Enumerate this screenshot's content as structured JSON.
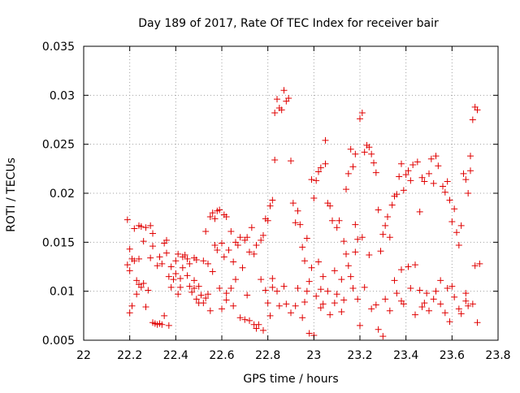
{
  "chart_data": {
    "type": "scatter",
    "title": "Day 189 of 2017, Rate Of TEC Index for receiver bair",
    "xlabel": "GPS time / hours",
    "ylabel": "ROTI / TECUs",
    "xlim": [
      22,
      23.8
    ],
    "ylim": [
      0.005,
      0.035
    ],
    "xticks": [
      "22",
      "22.2",
      "22.4",
      "22.6",
      "22.8",
      "23",
      "23.2",
      "23.4",
      "23.6",
      "23.8"
    ],
    "yticks": [
      "0.005",
      "0.01",
      "0.015",
      "0.02",
      "0.025",
      "0.03",
      "0.035"
    ],
    "grid": true,
    "marker": "+",
    "color": "#e00000",
    "series": [
      {
        "name": "",
        "points": [
          [
            22.19,
            0.0173
          ],
          [
            22.19,
            0.0127
          ],
          [
            22.2,
            0.0143
          ],
          [
            22.2,
            0.0121
          ],
          [
            22.21,
            0.0133
          ],
          [
            22.21,
            0.0085
          ],
          [
            22.2,
            0.0078
          ],
          [
            22.22,
            0.0164
          ],
          [
            22.22,
            0.0131
          ],
          [
            22.23,
            0.0111
          ],
          [
            22.23,
            0.0097
          ],
          [
            22.24,
            0.0167
          ],
          [
            22.24,
            0.0107
          ],
          [
            22.25,
            0.0104
          ],
          [
            22.25,
            0.0166
          ],
          [
            22.26,
            0.0151
          ],
          [
            22.26,
            0.0108
          ],
          [
            22.27,
            0.0165
          ],
          [
            22.27,
            0.0084
          ],
          [
            22.28,
            0.0101
          ],
          [
            22.29,
            0.0167
          ],
          [
            22.29,
            0.0134
          ],
          [
            22.3,
            0.0068
          ],
          [
            22.3,
            0.0159
          ],
          [
            22.31,
            0.0067
          ],
          [
            22.32,
            0.0126
          ],
          [
            22.32,
            0.0066
          ],
          [
            22.33,
            0.0135
          ],
          [
            22.33,
            0.0067
          ],
          [
            22.34,
            0.0128
          ],
          [
            22.34,
            0.0066
          ],
          [
            22.35,
            0.0149
          ],
          [
            22.35,
            0.0075
          ],
          [
            22.36,
            0.0152
          ],
          [
            22.36,
            0.0139
          ],
          [
            22.37,
            0.0115
          ],
          [
            22.37,
            0.0065
          ],
          [
            22.38,
            0.0104
          ],
          [
            22.38,
            0.0125
          ],
          [
            22.39,
            0.0112
          ],
          [
            22.4,
            0.0118
          ],
          [
            22.4,
            0.0131
          ],
          [
            22.41,
            0.0097
          ],
          [
            22.41,
            0.0138
          ],
          [
            22.42,
            0.0113
          ],
          [
            22.42,
            0.0104
          ],
          [
            22.43,
            0.0124
          ],
          [
            22.43,
            0.0135
          ],
          [
            22.44,
            0.0137
          ],
          [
            22.45,
            0.0133
          ],
          [
            22.45,
            0.0116
          ],
          [
            22.46,
            0.0128
          ],
          [
            22.46,
            0.0105
          ],
          [
            22.47,
            0.0099
          ],
          [
            22.48,
            0.0134
          ],
          [
            22.48,
            0.0111
          ],
          [
            22.49,
            0.0132
          ],
          [
            22.49,
            0.0092
          ],
          [
            22.5,
            0.0088
          ],
          [
            22.5,
            0.0105
          ],
          [
            22.51,
            0.0096
          ],
          [
            22.52,
            0.0131
          ],
          [
            22.52,
            0.0088
          ],
          [
            22.53,
            0.0093
          ],
          [
            22.53,
            0.0161
          ],
          [
            22.54,
            0.0128
          ],
          [
            22.54,
            0.0097
          ],
          [
            22.55,
            0.0176
          ],
          [
            22.55,
            0.008
          ],
          [
            22.56,
            0.018
          ],
          [
            22.56,
            0.012
          ],
          [
            22.57,
            0.0174
          ],
          [
            22.58,
            0.0142
          ],
          [
            22.58,
            0.0182
          ],
          [
            22.59,
            0.0103
          ],
          [
            22.59,
            0.0183
          ],
          [
            22.6,
            0.0149
          ],
          [
            22.6,
            0.0082
          ],
          [
            22.61,
            0.0178
          ],
          [
            22.61,
            0.0135
          ],
          [
            22.62,
            0.0176
          ],
          [
            22.62,
            0.0091
          ],
          [
            22.63,
            0.0142
          ],
          [
            22.64,
            0.0161
          ],
          [
            22.64,
            0.0103
          ],
          [
            22.65,
            0.013
          ],
          [
            22.65,
            0.0085
          ],
          [
            22.66,
            0.015
          ],
          [
            22.66,
            0.0112
          ],
          [
            22.67,
            0.0147
          ],
          [
            22.68,
            0.0073
          ],
          [
            22.68,
            0.0155
          ],
          [
            22.69,
            0.0124
          ],
          [
            22.7,
            0.0071
          ],
          [
            22.7,
            0.0152
          ],
          [
            22.71,
            0.0155
          ],
          [
            22.71,
            0.0096
          ],
          [
            22.72,
            0.007
          ],
          [
            22.72,
            0.014
          ],
          [
            22.73,
            0.0165
          ],
          [
            22.74,
            0.0066
          ],
          [
            22.74,
            0.0138
          ],
          [
            22.75,
            0.0062
          ],
          [
            22.75,
            0.0147
          ],
          [
            22.76,
            0.0066
          ],
          [
            22.77,
            0.0152
          ],
          [
            22.77,
            0.0112
          ],
          [
            22.78,
            0.0157
          ],
          [
            22.78,
            0.006
          ],
          [
            22.79,
            0.0174
          ],
          [
            22.79,
            0.0101
          ],
          [
            22.8,
            0.0172
          ],
          [
            22.8,
            0.0088
          ],
          [
            22.81,
            0.0187
          ],
          [
            22.81,
            0.0075
          ],
          [
            22.82,
            0.0193
          ],
          [
            22.82,
            0.0104
          ],
          [
            22.83,
            0.0234
          ],
          [
            22.83,
            0.0282
          ],
          [
            22.84,
            0.0296
          ],
          [
            22.84,
            0.01
          ],
          [
            22.85,
            0.0287
          ],
          [
            22.85,
            0.0085
          ],
          [
            22.86,
            0.0285
          ],
          [
            22.87,
            0.0305
          ],
          [
            22.87,
            0.0105
          ],
          [
            22.88,
            0.0294
          ],
          [
            22.88,
            0.0087
          ],
          [
            22.89,
            0.0297
          ],
          [
            22.9,
            0.0233
          ],
          [
            22.9,
            0.0078
          ],
          [
            22.91,
            0.019
          ],
          [
            22.92,
            0.017
          ],
          [
            22.92,
            0.0085
          ],
          [
            22.93,
            0.0182
          ],
          [
            22.93,
            0.0103
          ],
          [
            22.94,
            0.0168
          ],
          [
            22.95,
            0.0145
          ],
          [
            22.95,
            0.0073
          ],
          [
            22.96,
            0.0131
          ],
          [
            22.96,
            0.0089
          ],
          [
            22.97,
            0.0154
          ],
          [
            22.98,
            0.011
          ],
          [
            22.98,
            0.0057
          ],
          [
            22.99,
            0.0214
          ],
          [
            22.99,
            0.0124
          ],
          [
            23.0,
            0.0195
          ],
          [
            23.0,
            0.0055
          ],
          [
            23.01,
            0.0213
          ],
          [
            23.01,
            0.0095
          ],
          [
            23.02,
            0.0222
          ],
          [
            23.02,
            0.013
          ],
          [
            23.03,
            0.0226
          ],
          [
            23.04,
            0.0115
          ],
          [
            23.04,
            0.0087
          ],
          [
            23.05,
            0.0254
          ],
          [
            23.05,
            0.023
          ],
          [
            23.06,
            0.019
          ],
          [
            23.06,
            0.01
          ],
          [
            23.07,
            0.0187
          ],
          [
            23.07,
            0.0076
          ],
          [
            23.08,
            0.0172
          ],
          [
            23.09,
            0.0121
          ],
          [
            23.09,
            0.0088
          ],
          [
            23.1,
            0.0165
          ],
          [
            23.1,
            0.0097
          ],
          [
            23.11,
            0.0172
          ],
          [
            23.12,
            0.0112
          ],
          [
            23.12,
            0.0079
          ],
          [
            23.13,
            0.0151
          ],
          [
            23.13,
            0.0091
          ],
          [
            23.14,
            0.0204
          ],
          [
            23.14,
            0.0138
          ],
          [
            23.15,
            0.022
          ],
          [
            23.16,
            0.0115
          ],
          [
            23.16,
            0.0245
          ],
          [
            23.17,
            0.0227
          ],
          [
            23.17,
            0.0103
          ],
          [
            23.18,
            0.024
          ],
          [
            23.18,
            0.0168
          ],
          [
            23.19,
            0.0092
          ],
          [
            23.19,
            0.0153
          ],
          [
            23.2,
            0.0065
          ],
          [
            23.2,
            0.0276
          ],
          [
            23.21,
            0.0282
          ],
          [
            23.21,
            0.0155
          ],
          [
            23.22,
            0.0242
          ],
          [
            23.22,
            0.0104
          ],
          [
            23.23,
            0.0249
          ],
          [
            23.24,
            0.0247
          ],
          [
            23.24,
            0.0137
          ],
          [
            23.25,
            0.024
          ],
          [
            23.25,
            0.0082
          ],
          [
            23.26,
            0.0231
          ],
          [
            23.27,
            0.0221
          ],
          [
            23.27,
            0.0086
          ],
          [
            23.28,
            0.0183
          ],
          [
            23.28,
            0.0061
          ],
          [
            23.29,
            0.0141
          ],
          [
            23.3,
            0.0158
          ],
          [
            23.3,
            0.0054
          ],
          [
            23.31,
            0.0167
          ],
          [
            23.31,
            0.0092
          ],
          [
            23.32,
            0.0176
          ],
          [
            23.33,
            0.0155
          ],
          [
            23.33,
            0.008
          ],
          [
            23.34,
            0.0188
          ],
          [
            23.35,
            0.0197
          ],
          [
            23.35,
            0.0111
          ],
          [
            23.36,
            0.0199
          ],
          [
            23.36,
            0.0098
          ],
          [
            23.37,
            0.0217
          ],
          [
            23.38,
            0.023
          ],
          [
            23.38,
            0.0122
          ],
          [
            23.39,
            0.0203
          ],
          [
            23.39,
            0.0087
          ],
          [
            23.4,
            0.0219
          ],
          [
            23.41,
            0.0223
          ],
          [
            23.41,
            0.0125
          ],
          [
            23.42,
            0.0213
          ],
          [
            23.42,
            0.0103
          ],
          [
            23.43,
            0.0229
          ],
          [
            23.44,
            0.0127
          ],
          [
            23.44,
            0.0076
          ],
          [
            23.45,
            0.0232
          ],
          [
            23.46,
            0.0181
          ],
          [
            23.46,
            0.0101
          ],
          [
            23.47,
            0.0216
          ],
          [
            23.47,
            0.0084
          ],
          [
            23.48,
            0.0088
          ],
          [
            23.48,
            0.0212
          ],
          [
            23.49,
            0.0098
          ],
          [
            23.5,
            0.022
          ],
          [
            23.5,
            0.008
          ],
          [
            23.51,
            0.0235
          ],
          [
            23.52,
            0.021
          ],
          [
            23.52,
            0.0092
          ],
          [
            23.53,
            0.0238
          ],
          [
            23.53,
            0.01
          ],
          [
            23.54,
            0.0228
          ],
          [
            23.55,
            0.0111
          ],
          [
            23.55,
            0.0087
          ],
          [
            23.56,
            0.0207
          ],
          [
            23.57,
            0.0201
          ],
          [
            23.57,
            0.0078
          ],
          [
            23.58,
            0.0212
          ],
          [
            23.58,
            0.0103
          ],
          [
            23.59,
            0.0193
          ],
          [
            23.59,
            0.0069
          ],
          [
            23.6,
            0.0171
          ],
          [
            23.61,
            0.0184
          ],
          [
            23.61,
            0.0094
          ],
          [
            23.62,
            0.016
          ],
          [
            23.63,
            0.0147
          ],
          [
            23.63,
            0.0082
          ],
          [
            23.64,
            0.0167
          ],
          [
            23.64,
            0.0077
          ],
          [
            23.65,
            0.022
          ],
          [
            23.66,
            0.0214
          ],
          [
            23.66,
            0.0098
          ],
          [
            23.67,
            0.02
          ],
          [
            23.67,
            0.0085
          ],
          [
            23.68,
            0.0223
          ],
          [
            23.68,
            0.0238
          ],
          [
            23.69,
            0.0275
          ],
          [
            23.69,
            0.0087
          ],
          [
            23.7,
            0.0288
          ],
          [
            23.7,
            0.0126
          ],
          [
            23.71,
            0.0285
          ],
          [
            23.71,
            0.0068
          ],
          [
            23.72,
            0.0128
          ],
          [
            23.18,
            0.014
          ],
          [
            23.15,
            0.0126
          ],
          [
            23.03,
            0.0102
          ],
          [
            22.82,
            0.0113
          ],
          [
            22.48,
            0.0103
          ],
          [
            22.24,
            0.0133
          ],
          [
            22.3,
            0.0146
          ],
          [
            22.57,
            0.0147
          ],
          [
            22.62,
            0.0098
          ],
          [
            22.97,
            0.01
          ],
          [
            23.03,
            0.0083
          ],
          [
            23.38,
            0.009
          ],
          [
            23.6,
            0.0105
          ],
          [
            23.66,
            0.009
          ]
        ]
      }
    ]
  }
}
